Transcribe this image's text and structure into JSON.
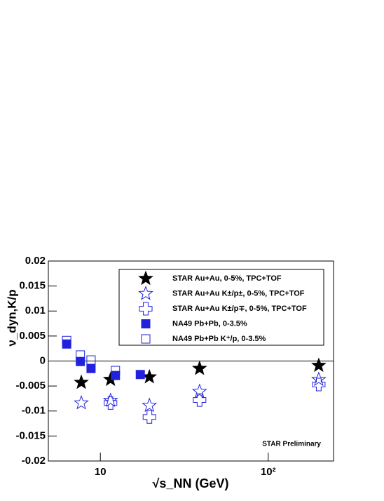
{
  "chart_data": {
    "type": "scatter",
    "x_label": "√s_NN (GeV)",
    "y_label": "ν_dyn,K/p",
    "annotation": "STAR Preliminary",
    "xscale": "log",
    "xlim": [
      4.9,
      245
    ],
    "xticks": [
      10,
      {
        "value": 100,
        "label": "10²"
      }
    ],
    "ylim": [
      -0.02,
      0.02
    ],
    "yticks": [
      -0.02,
      -0.015,
      -0.01,
      -0.005,
      0,
      0.005,
      0.01,
      0.015,
      0.02
    ],
    "series": [
      {
        "name": "STAR Au+Au, 0-5%, TPC+TOF",
        "color": "#000000",
        "marker": "filled-star",
        "x": [
          7.7,
          11.5,
          19.6,
          39,
          200
        ],
        "values": [
          -0.0043,
          -0.0037,
          -0.0032,
          -0.0015,
          -0.0009
        ]
      },
      {
        "name": "STAR Au+Au K±/p±, 0-5%, TPC+TOF",
        "color": "#2222dd",
        "marker": "open-star",
        "x": [
          7.7,
          11.5,
          19.6,
          39,
          200
        ],
        "values": [
          -0.0084,
          -0.0079,
          -0.0089,
          -0.0061,
          -0.0037
        ]
      },
      {
        "name": "STAR Au+Au K±/p∓, 0-5%, TPC+TOF",
        "color": "#2222dd",
        "marker": "open-cross",
        "x": [
          11.5,
          19.6,
          39,
          200
        ],
        "values": [
          -0.0084,
          -0.0112,
          -0.0078,
          -0.0047
        ]
      },
      {
        "name": "NA49 Pb+Pb, 0-3.5%",
        "color": "#2222dd",
        "marker": "filled-square",
        "x": [
          6.3,
          7.6,
          8.8,
          12.3,
          17.3
        ],
        "values": [
          0.0034,
          -0.0001,
          -0.0015,
          -0.0029,
          -0.0027
        ]
      },
      {
        "name": "NA49 Pb+Pb K⁺/p, 0-3.5%",
        "color": "#2222dd",
        "marker": "open-square",
        "x": [
          6.3,
          7.6,
          8.8,
          12.3
        ],
        "values": [
          0.0041,
          0.0012,
          0.0002,
          -0.0019
        ]
      }
    ]
  }
}
